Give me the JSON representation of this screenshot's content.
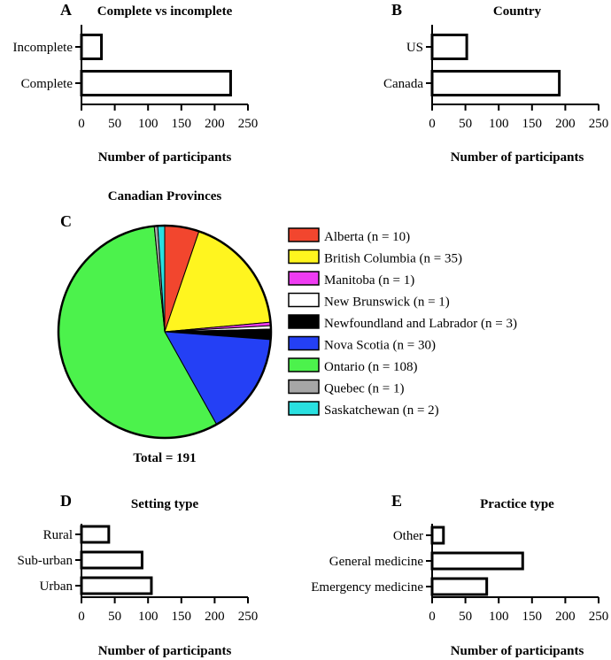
{
  "figure": {
    "panels": {
      "A": "A",
      "B": "B",
      "C": "C",
      "D": "D",
      "E": "E"
    }
  },
  "chart_data": [
    {
      "id": "A",
      "type": "bar",
      "orientation": "horizontal",
      "title": "Complete vs incomplete",
      "categories": [
        "Incomplete",
        "Complete"
      ],
      "values": [
        30,
        224
      ],
      "xlabel": "Number of participants",
      "ylabel": "",
      "xlim": [
        0,
        250
      ],
      "xticks": [
        0,
        50,
        100,
        150,
        200,
        250
      ],
      "grid": false
    },
    {
      "id": "B",
      "type": "bar",
      "orientation": "horizontal",
      "title": "Country",
      "categories": [
        "US",
        "Canada"
      ],
      "values": [
        52,
        191
      ],
      "xlabel": "Number of participants",
      "ylabel": "",
      "xlim": [
        0,
        250
      ],
      "xticks": [
        0,
        50,
        100,
        150,
        200,
        250
      ],
      "grid": false
    },
    {
      "id": "C",
      "type": "pie",
      "title": "Canadian Provinces",
      "total_label": "Total = 191",
      "legend_position": "right",
      "slices": [
        {
          "name": "Alberta (n = 10)",
          "value": 10,
          "color": "#f2462e"
        },
        {
          "name": "British Columbia (n = 35)",
          "value": 35,
          "color": "#fff51f"
        },
        {
          "name": "Manitoba (n = 1)",
          "value": 1,
          "color": "#ef3cf2"
        },
        {
          "name": "New Brunswick (n = 1)",
          "value": 1,
          "color": "#ffffff"
        },
        {
          "name": "Newfoundland and Labrador (n = 3)",
          "value": 3,
          "color": "#000000"
        },
        {
          "name": "Nova Scotia (n = 30)",
          "value": 30,
          "color": "#2440f5"
        },
        {
          "name": "Ontario (n = 108)",
          "value": 108,
          "color": "#4cf24c"
        },
        {
          "name": "Quebec (n = 1)",
          "value": 1,
          "color": "#a6a6a6"
        },
        {
          "name": "Saskatchewan (n = 2)",
          "value": 2,
          "color": "#29e0e0"
        }
      ]
    },
    {
      "id": "D",
      "type": "bar",
      "orientation": "horizontal",
      "title": "Setting type",
      "categories": [
        "Rural",
        "Sub-urban",
        "Urban"
      ],
      "values": [
        41,
        91,
        105
      ],
      "xlabel": "Number of participants",
      "ylabel": "",
      "xlim": [
        0,
        250
      ],
      "xticks": [
        0,
        50,
        100,
        150,
        200,
        250
      ],
      "grid": false
    },
    {
      "id": "E",
      "type": "bar",
      "orientation": "horizontal",
      "title": "Practice type",
      "categories": [
        "Other",
        "General medicine",
        "Emergency medicine"
      ],
      "values": [
        17,
        136,
        82
      ],
      "xlabel": "Number of participants",
      "ylabel": "",
      "xlim": [
        0,
        250
      ],
      "xticks": [
        0,
        50,
        100,
        150,
        200,
        250
      ],
      "grid": false
    }
  ]
}
